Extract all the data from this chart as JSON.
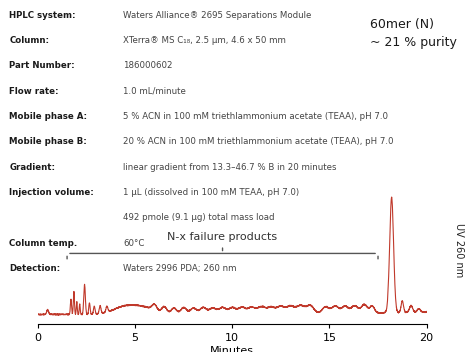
{
  "xlabel": "Minutes",
  "ylabel": "UV 260 nm",
  "xlim": [
    0,
    20
  ],
  "line_color": "#c0392b",
  "background_color": "#ffffff",
  "annotation_nx": "N-x failure products",
  "annotation_60mer": "60mer (N)\n~ 21 % purity",
  "info_lines": [
    [
      "HPLC system",
      "Waters Alliance® 2695 Separations Module"
    ],
    [
      "Column",
      "XTerra® MS C₁₈, 2.5 μm, 4.6 x 50 mm"
    ],
    [
      "Part Number",
      "186000602"
    ],
    [
      "Flow rate",
      "1.0 mL/minute"
    ],
    [
      "Mobile phase A",
      "5 % ACN in 100 mM triethlammonium acetate (TEAA), pH 7.0"
    ],
    [
      "Mobile phase B",
      "20 % ACN in 100 mM triethlammonium acetate (TEAA), pH 7.0"
    ],
    [
      "Gradient",
      "linear gradient from 13.3–46.7 % B in 20 minutes"
    ],
    [
      "Injection volume",
      "1 μL (dissolved in 100 mM TEAA, pH 7.0)"
    ],
    [
      "",
      "492 pmole (9.1 μg) total mass load"
    ],
    [
      "Column temp.",
      "60°C"
    ],
    [
      "Detection",
      "Waters 2996 PDA; 260 nm"
    ]
  ]
}
